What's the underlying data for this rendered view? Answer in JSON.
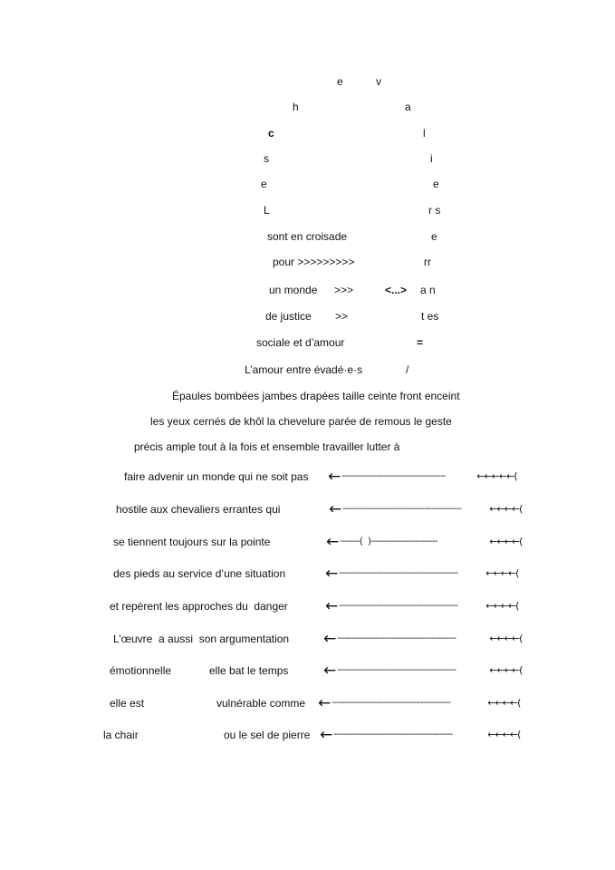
{
  "top": [
    {
      "text": "e"
    },
    {
      "text": "v"
    },
    {
      "text": "h"
    },
    {
      "text": "a"
    },
    {
      "text": "c"
    },
    {
      "text": "l"
    },
    {
      "text": "s"
    },
    {
      "text": "i"
    },
    {
      "text": "e"
    },
    {
      "text": "e"
    },
    {
      "text": "L"
    },
    {
      "text": "r s"
    },
    {
      "text": "sont en croisade"
    },
    {
      "text": "e"
    },
    {
      "text": "pour >>>>>>>>>"
    },
    {
      "text": "rr"
    },
    {
      "text": "un monde"
    },
    {
      "text": ">>>"
    },
    {
      "text": "<...>"
    },
    {
      "text": "a n"
    },
    {
      "text": "de justice"
    },
    {
      "text": ">>"
    },
    {
      "text": "t es"
    },
    {
      "text": "sociale et d’amour"
    },
    {
      "text": "="
    },
    {
      "text": "L’amour entre évadé·e·s"
    },
    {
      "text": "/"
    }
  ],
  "prose": [
    "Épaules bombées jambes drapées taille ceinte front enceint",
    "les yeux cernés de khôl la chevelure parée de remous le geste",
    "précis ample tout à la fois et ensemble travailler lutter à"
  ],
  "rows": [
    {
      "left": "faire advenir un monde qui ne soit pas",
      "right": "",
      "big": "←",
      "dashes": "------------------------------------------",
      "small": "←←←←←("
    },
    {
      "left": "hostile aux chevaliers errantes qui",
      "right": "",
      "big": "←",
      "dashes": "------------------------------------------------",
      "small": "←←←←("
    },
    {
      "left": "se tiennent toujours sur la pointe",
      "right": "",
      "big": "←",
      "dashes": "--------(   )---------------------------",
      "small": "←←←←("
    },
    {
      "left": "des pieds au service d’une situation",
      "right": "",
      "big": "←",
      "dashes": "------------------------------------------------",
      "small": "←←←←("
    },
    {
      "left": "et repèrent les approches du  danger",
      "right": "",
      "big": "←",
      "dashes": "------------------------------------------------",
      "small": "←←←←("
    },
    {
      "left": "L’œuvre  a aussi  son argumentation",
      "right": "",
      "big": "←",
      "dashes": "------------------------------------------------",
      "small": "←←←←("
    },
    {
      "left": "émotionnelle",
      "right": "elle bat le temps",
      "big": "←",
      "dashes": "------------------------------------------------",
      "small": "←←←←("
    },
    {
      "left": "elle est",
      "right": "vulnérable comme",
      "big": "←",
      "dashes": "------------------------------------------------",
      "small": "←←←←("
    },
    {
      "left": "la chair",
      "right": "ou le sel de pierre",
      "big": "←",
      "dashes": "------------------------------------------------",
      "small": "←←←←("
    }
  ]
}
